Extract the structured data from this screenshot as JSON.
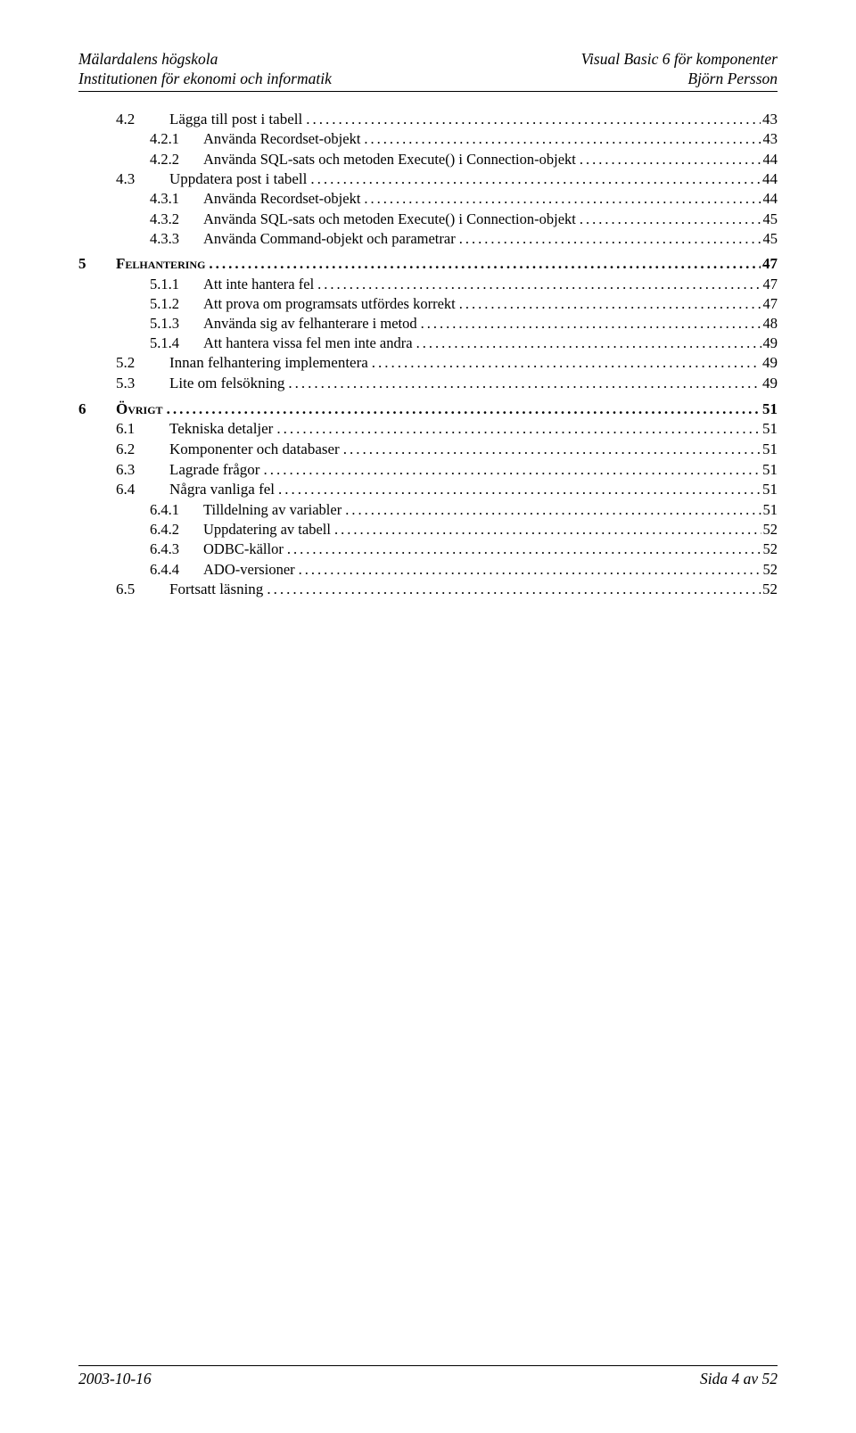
{
  "header": {
    "left_line1": "Mälardalens högskola",
    "left_line2": "Institutionen för ekonomi och informatik",
    "right_line1": "Visual Basic 6 för komponenter",
    "right_line2": "Björn Persson"
  },
  "footer": {
    "left": "2003-10-16",
    "right": "Sida 4 av 52"
  },
  "toc": [
    {
      "level": 2,
      "num": "4.2",
      "label": "Lägga till post i tabell",
      "page": "43"
    },
    {
      "level": 3,
      "num": "4.2.1",
      "label": "Använda Recordset-objekt",
      "page": "43"
    },
    {
      "level": 3,
      "num": "4.2.2",
      "label": "Använda SQL-sats och metoden Execute() i Connection-objekt",
      "page": "44"
    },
    {
      "level": 2,
      "num": "4.3",
      "label": "Uppdatera post i tabell",
      "page": "44"
    },
    {
      "level": 3,
      "num": "4.3.1",
      "label": "Använda Recordset-objekt",
      "page": "44"
    },
    {
      "level": 3,
      "num": "4.3.2",
      "label": "Använda SQL-sats och metoden Execute() i Connection-objekt",
      "page": "45"
    },
    {
      "level": 3,
      "num": "4.3.3",
      "label": "Använda Command-objekt och parametrar",
      "page": "45"
    },
    {
      "level": 1,
      "num": "5",
      "label": "Felhantering",
      "page": "47"
    },
    {
      "level": 3,
      "num": "5.1.1",
      "label": "Att inte hantera fel",
      "page": "47"
    },
    {
      "level": 3,
      "num": "5.1.2",
      "label": "Att prova om programsats utfördes korrekt",
      "page": "47"
    },
    {
      "level": 3,
      "num": "5.1.3",
      "label": "Använda sig av felhanterare i metod",
      "page": "48"
    },
    {
      "level": 3,
      "num": "5.1.4",
      "label": "Att hantera vissa fel men inte andra",
      "page": "49"
    },
    {
      "level": 2,
      "num": "5.2",
      "label": "Innan felhantering implementera",
      "page": "49"
    },
    {
      "level": 2,
      "num": "5.3",
      "label": "Lite om felsökning",
      "page": "49"
    },
    {
      "level": 1,
      "num": "6",
      "label": "Övrigt",
      "page": "51"
    },
    {
      "level": 2,
      "num": "6.1",
      "label": "Tekniska detaljer",
      "page": "51"
    },
    {
      "level": 2,
      "num": "6.2",
      "label": "Komponenter och databaser",
      "page": "51"
    },
    {
      "level": 2,
      "num": "6.3",
      "label": "Lagrade frågor",
      "page": "51"
    },
    {
      "level": 2,
      "num": "6.4",
      "label": "Några vanliga fel",
      "page": "51"
    },
    {
      "level": 3,
      "num": "6.4.1",
      "label": "Tilldelning av variabler",
      "page": "51"
    },
    {
      "level": 3,
      "num": "6.4.2",
      "label": "Uppdatering av tabell",
      "page": "52"
    },
    {
      "level": 3,
      "num": "6.4.3",
      "label": "ODBC-källor",
      "page": "52"
    },
    {
      "level": 3,
      "num": "6.4.4",
      "label": "ADO-versioner",
      "page": "52"
    },
    {
      "level": 2,
      "num": "6.5",
      "label": "Fortsatt läsning",
      "page": "52"
    }
  ]
}
